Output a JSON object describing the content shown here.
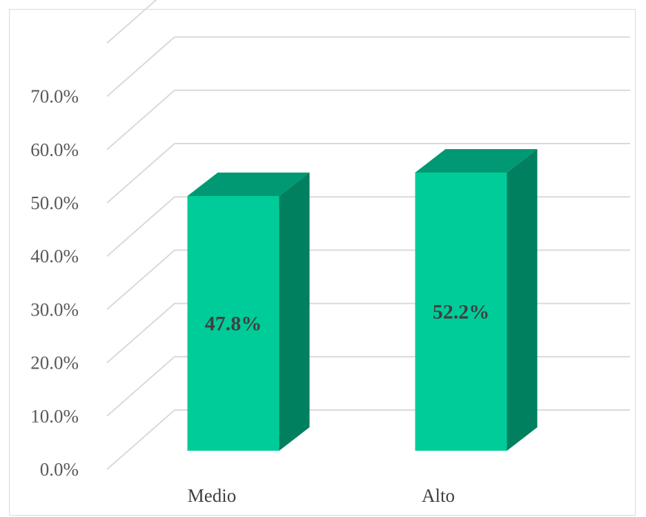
{
  "chart_data": {
    "type": "bar",
    "style": "3d-column",
    "categories": [
      "Medio",
      "Alto"
    ],
    "values": [
      47.8,
      52.2
    ],
    "data_labels": [
      "47.8%",
      "52.2%"
    ],
    "yticks": [
      "0.0%",
      "10.0%",
      "20.0%",
      "30.0%",
      "40.0%",
      "50.0%",
      "60.0%",
      "70.0%"
    ],
    "ylim": [
      0,
      70
    ],
    "grid": true,
    "legend": "none",
    "colors": {
      "bar_front": "#00CC99",
      "bar_top": "#009973",
      "bar_side": "#00805F",
      "gridline": "#d9d9d9",
      "frame": "#d9d9d9"
    }
  }
}
